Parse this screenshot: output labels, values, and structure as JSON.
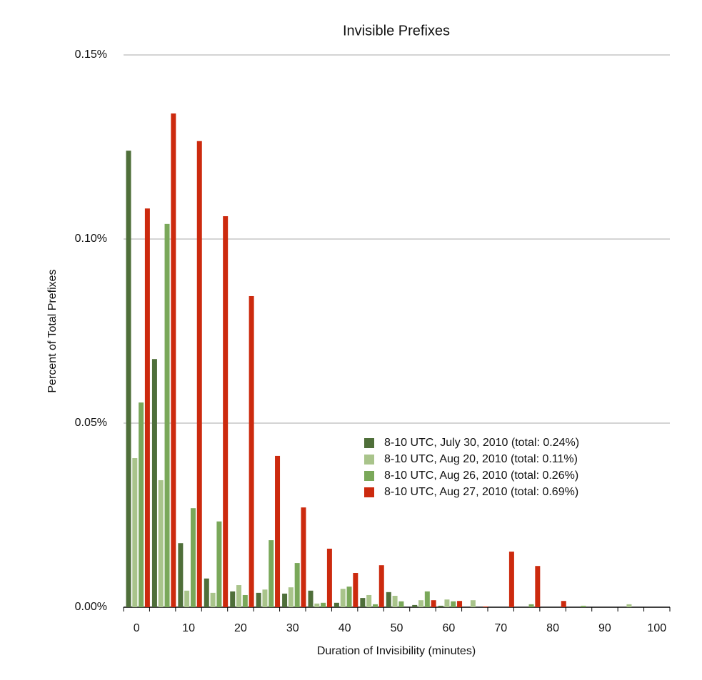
{
  "chart_data": {
    "type": "bar",
    "title": "Invisible Prefixes",
    "x_label": "Duration of Invisibility (minutes)",
    "y_label": "Percent of Total Prefixes",
    "categories": [
      "0",
      null,
      "10",
      null,
      "20",
      null,
      "30",
      null,
      "40",
      null,
      "50",
      null,
      "60",
      null,
      "70",
      null,
      "80",
      null,
      "90",
      null,
      "100"
    ],
    "series": [
      {
        "name": "8-10 UTC, July 30, 2010 (total: 0.24%)",
        "color": "#4f6f3a",
        "values": [
          0.124,
          0.0674,
          0.0174,
          0.0078,
          0.0043,
          0.0039,
          0.0037,
          0.0045,
          0.0012,
          0.0025,
          0.0041,
          0.0006,
          0.0004,
          0,
          0,
          0,
          0,
          0,
          0,
          0,
          0
        ]
      },
      {
        "name": "8-10 UTC, Aug 20, 2010 (total: 0.11%)",
        "color": "#a9c48b",
        "values": [
          0.0405,
          0.0345,
          0.0045,
          0.0039,
          0.006,
          0.0048,
          0.0054,
          0.001,
          0.005,
          0.0033,
          0.0031,
          0.0019,
          0.0021,
          0.0019,
          0,
          0,
          0,
          0,
          0,
          0.0008,
          0
        ]
      },
      {
        "name": "8-10 UTC, Aug 26, 2010 (total: 0.26%)",
        "color": "#7aa85a",
        "values": [
          0.0556,
          0.1041,
          0.0269,
          0.0233,
          0.0033,
          0.0182,
          0.012,
          0.0012,
          0.0056,
          0.0008,
          0.0016,
          0.0043,
          0.0016,
          0,
          0,
          0.0008,
          0,
          0.0004,
          0,
          0,
          0
        ]
      },
      {
        "name": "8-10 UTC, Aug 27, 2010 (total: 0.69%)",
        "color": "#cc2a0e",
        "values": [
          0.1083,
          0.1341,
          0.1266,
          0.1062,
          0.0845,
          0.0411,
          0.0271,
          0.0159,
          0.0093,
          0.0114,
          0,
          0.0019,
          0.0017,
          0.0002,
          0.0151,
          0.0112,
          0.0017,
          0,
          0,
          0,
          0
        ]
      }
    ],
    "ylim": [
      0,
      0.15
    ],
    "yticks": [
      {
        "value": 0,
        "label": "0.00%"
      },
      {
        "value": 0.05,
        "label": "0.05%"
      },
      {
        "value": 0.1,
        "label": "0.10%"
      },
      {
        "value": 0.15,
        "label": "0.15%"
      }
    ],
    "grid": true
  }
}
